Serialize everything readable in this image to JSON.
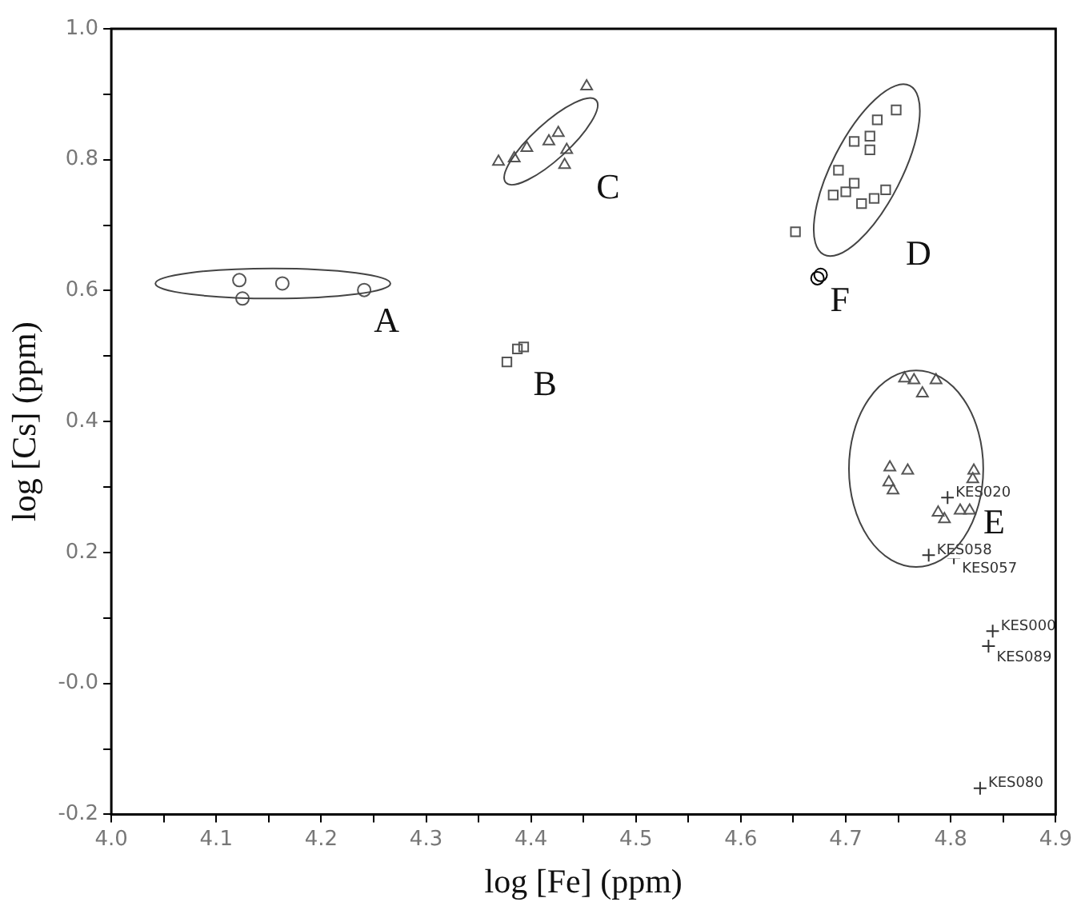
{
  "chart_data": {
    "type": "scatter",
    "xlabel": "log [Fe] (ppm)",
    "ylabel": "log [Cs] (ppm)",
    "xlim": [
      4.0,
      4.9
    ],
    "ylim": [
      -0.2,
      1.0
    ],
    "xticks": [
      {
        "value": 4.0,
        "label": "4.0"
      },
      {
        "value": 4.05,
        "label": null
      },
      {
        "value": 4.1,
        "label": "4.1"
      },
      {
        "value": 4.15,
        "label": null
      },
      {
        "value": 4.2,
        "label": "4.2"
      },
      {
        "value": 4.25,
        "label": null
      },
      {
        "value": 4.3,
        "label": "4.3"
      },
      {
        "value": 4.35,
        "label": null
      },
      {
        "value": 4.4,
        "label": "4.4"
      },
      {
        "value": 4.45,
        "label": null
      },
      {
        "value": 4.5,
        "label": "4.5"
      },
      {
        "value": 4.55,
        "label": null
      },
      {
        "value": 4.6,
        "label": "4.6"
      },
      {
        "value": 4.65,
        "label": null
      },
      {
        "value": 4.7,
        "label": "4.7"
      },
      {
        "value": 4.75,
        "label": null
      },
      {
        "value": 4.8,
        "label": "4.8"
      },
      {
        "value": 4.85,
        "label": null
      },
      {
        "value": 4.9,
        "label": "4.9"
      }
    ],
    "yticks": [
      {
        "value": -0.2,
        "label": "-0.2"
      },
      {
        "value": -0.1,
        "label": null
      },
      {
        "value": 0.0,
        "label": "-0.0"
      },
      {
        "value": 0.1,
        "label": null
      },
      {
        "value": 0.2,
        "label": "0.2"
      },
      {
        "value": 0.3,
        "label": null
      },
      {
        "value": 0.4,
        "label": "0.4"
      },
      {
        "value": 0.5,
        "label": null
      },
      {
        "value": 0.6,
        "label": "0.6"
      },
      {
        "value": 0.7,
        "label": null
      },
      {
        "value": 0.8,
        "label": "0.8"
      },
      {
        "value": 0.9,
        "label": null
      },
      {
        "value": 1.0,
        "label": "1.0"
      }
    ],
    "grid": false,
    "legend": false,
    "series": [
      {
        "name": "A",
        "color": "#555555",
        "marker": "circle",
        "x": [
          4.122,
          4.125,
          4.163,
          4.241
        ],
        "values": [
          0.616,
          0.588,
          0.611,
          0.601
        ]
      },
      {
        "name": "B",
        "color": "#555555",
        "marker": "square",
        "x": [
          4.377,
          4.387,
          4.393
        ],
        "values": [
          0.491,
          0.511,
          0.514
        ]
      },
      {
        "name": "C",
        "color": "#555555",
        "marker": "triangle",
        "x": [
          4.453,
          4.396,
          4.384,
          4.417,
          4.426,
          4.434,
          4.432,
          4.369
        ],
        "values": [
          0.912,
          0.818,
          0.802,
          0.828,
          0.841,
          0.815,
          0.792,
          0.797
        ]
      },
      {
        "name": "D",
        "color": "#555555",
        "marker": "square",
        "x": [
          4.652,
          4.688,
          4.7,
          4.708,
          4.693,
          4.708,
          4.723,
          4.723,
          4.73,
          4.748,
          4.715,
          4.727,
          4.738
        ],
        "values": [
          0.69,
          0.746,
          0.751,
          0.764,
          0.784,
          0.828,
          0.836,
          0.815,
          0.861,
          0.876,
          0.733,
          0.741,
          0.754
        ]
      },
      {
        "name": "E",
        "color": "#555555",
        "marker": "triangle",
        "x": [
          4.756,
          4.765,
          4.773,
          4.786,
          4.742,
          4.759,
          4.741,
          4.745,
          4.788,
          4.794,
          4.809,
          4.818,
          4.822,
          4.821
        ],
        "values": [
          0.466,
          0.463,
          0.443,
          0.463,
          0.33,
          0.325,
          0.307,
          0.295,
          0.261,
          0.251,
          0.264,
          0.264,
          0.325,
          0.312
        ]
      },
      {
        "name": "F",
        "color": "#000000",
        "marker": "circle",
        "x": [
          4.676,
          4.673
        ],
        "values": [
          0.624,
          0.619
        ]
      },
      {
        "color": "#333333",
        "marker": "cross",
        "x": [
          4.797,
          4.779,
          4.803,
          4.84,
          4.836,
          4.828
        ],
        "values": [
          0.284,
          0.196,
          0.192,
          0.08,
          0.057,
          -0.16
        ],
        "value_labels": [
          "KES020",
          "KES058",
          "KES057",
          "KES000",
          "KES089",
          "KES080"
        ]
      }
    ]
  }
}
